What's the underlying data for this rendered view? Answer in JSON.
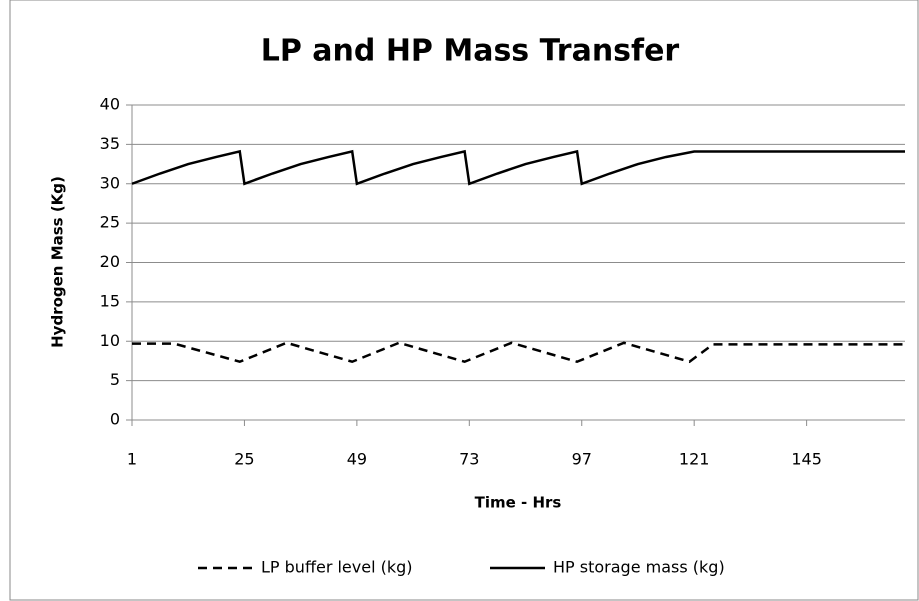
{
  "chart_data": {
    "type": "line",
    "title": "LP and HP Mass Transfer",
    "x_label": "Time - Hrs",
    "y_label": "Hydrogen Mass (Kg)",
    "xlim": [
      1,
      166
    ],
    "xticks": [
      1,
      25,
      49,
      73,
      97,
      121,
      145
    ],
    "ylim": [
      0,
      40
    ],
    "yticks": [
      0,
      5,
      10,
      15,
      20,
      25,
      30,
      35,
      40
    ],
    "grid": true,
    "legend": "bottom",
    "series": [
      {
        "name": "LP buffer level (kg)",
        "color": "#000000",
        "line_style": "dashed",
        "x": [
          1,
          10,
          24,
          34,
          48,
          58,
          72,
          82,
          96,
          106,
          120,
          125,
          166
        ],
        "values": [
          9.7,
          9.7,
          7.4,
          9.8,
          7.4,
          9.8,
          7.4,
          9.8,
          7.4,
          9.8,
          7.4,
          9.6,
          9.6
        ]
      },
      {
        "name": "HP storage mass (kg)",
        "color": "#000000",
        "line_style": "solid",
        "x": [
          1,
          7,
          13,
          19,
          24,
          25,
          31,
          37,
          43,
          48,
          49,
          55,
          61,
          67,
          72,
          73,
          79,
          85,
          91,
          96,
          97,
          103,
          109,
          115,
          121,
          166
        ],
        "values": [
          30,
          31.3,
          32.5,
          33.4,
          34.1,
          30,
          31.3,
          32.5,
          33.4,
          34.1,
          30,
          31.3,
          32.5,
          33.4,
          34.1,
          30,
          31.3,
          32.5,
          33.4,
          34.1,
          30,
          31.3,
          32.5,
          33.4,
          34.1,
          34.1
        ]
      }
    ]
  }
}
